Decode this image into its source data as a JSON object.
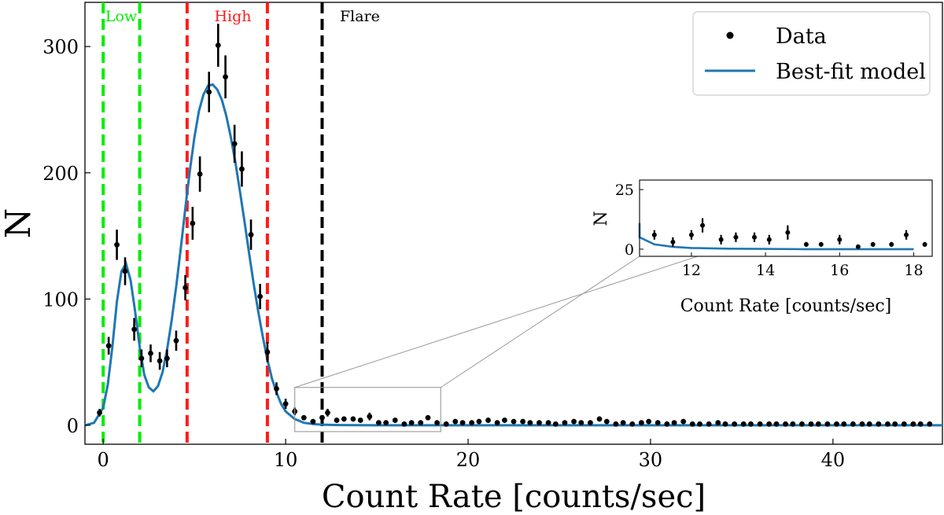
{
  "chart_data": {
    "type": "scatter",
    "xlabel": "Count Rate [counts/sec]",
    "ylabel": "N",
    "xlim": [
      -1,
      46
    ],
    "ylim": [
      -15,
      335
    ],
    "xticks": [
      0,
      10,
      20,
      30,
      40
    ],
    "yticks": [
      0,
      100,
      200,
      300
    ],
    "legend": {
      "placement": "top-right",
      "entries": [
        {
          "label": "Data",
          "marker": "point",
          "color": "#000000"
        },
        {
          "label": "Best-fit model",
          "marker": "line",
          "color": "#1f77b4"
        }
      ]
    },
    "regions": [
      {
        "label": "Low",
        "color": "#00ee00",
        "bounds": [
          0,
          2
        ]
      },
      {
        "label": "High",
        "color": "#ff1a1a",
        "bounds": [
          4.6,
          9.0
        ]
      },
      {
        "label": "Flare",
        "color": "#000000",
        "bounds": [
          12.0
        ]
      }
    ],
    "series": [
      {
        "name": "Data",
        "x": [
          -0.2,
          0.3,
          0.75,
          1.2,
          1.7,
          2.1,
          2.6,
          3.1,
          3.5,
          4.0,
          4.5,
          4.9,
          5.3,
          5.8,
          6.3,
          6.7,
          7.2,
          7.6,
          8.1,
          8.6,
          9.0,
          9.5,
          10.0,
          10.5,
          11.0,
          11.5,
          12.0,
          12.3,
          12.8,
          13.2,
          13.7,
          14.1,
          14.6,
          15.1,
          15.5,
          16.0,
          16.5,
          16.9,
          17.4,
          17.8,
          18.3,
          18.8,
          19.3,
          19.7,
          20.2,
          20.6,
          21.1,
          21.6,
          22.0,
          22.5,
          23.0,
          23.4,
          23.9,
          24.4,
          24.8,
          25.3,
          25.8,
          26.2,
          26.7,
          27.2,
          27.6,
          28.1,
          28.5,
          29.0,
          29.5,
          29.9,
          30.4,
          30.9,
          31.3,
          31.8,
          32.3,
          32.7,
          33.2,
          33.7,
          34.1,
          34.6,
          35.1,
          35.5,
          36.0,
          36.5,
          36.9,
          37.4,
          37.8,
          38.3,
          38.8,
          39.2,
          39.7,
          40.2,
          40.6,
          41.1,
          41.6,
          42.0,
          42.5,
          43.0,
          43.4,
          43.9,
          44.4,
          44.8,
          45.3
        ],
        "y": [
          10,
          63,
          143,
          122,
          76,
          53,
          57,
          51,
          53,
          67,
          109,
          160,
          199,
          264,
          301,
          276,
          223,
          203,
          151,
          102,
          58,
          29,
          17,
          11,
          6,
          3,
          6,
          10,
          4,
          5,
          5,
          4,
          7,
          2,
          2,
          4,
          1,
          2,
          2,
          6,
          2,
          1,
          3,
          2,
          2,
          3,
          4,
          2,
          4,
          3,
          3,
          2,
          2,
          2,
          1,
          2,
          3,
          2,
          2,
          5,
          3,
          1,
          2,
          1,
          2,
          3,
          2,
          1,
          2,
          3,
          1,
          1,
          1,
          2,
          1,
          1,
          1,
          1,
          1,
          1,
          1,
          1,
          1,
          1,
          1,
          1,
          1,
          1,
          1,
          1,
          1,
          1,
          1,
          1,
          1,
          1,
          1,
          1,
          1
        ],
        "yerr": [
          3,
          7,
          12,
          11,
          9,
          7,
          7,
          7,
          7,
          8,
          10,
          13,
          14,
          16,
          17,
          17,
          15,
          14,
          12,
          10,
          8,
          5,
          4,
          3,
          2,
          2,
          2,
          3,
          2,
          2,
          2,
          2,
          3,
          1,
          1,
          2,
          1,
          1,
          1,
          2,
          1,
          1,
          2,
          1,
          1,
          2,
          2,
          1,
          2,
          2,
          2,
          1,
          1,
          1,
          1,
          1,
          2,
          1,
          1,
          2,
          2,
          1,
          1,
          1,
          1,
          2,
          1,
          1,
          1,
          2,
          1,
          1,
          1,
          1,
          1,
          1,
          1,
          1,
          1,
          1,
          1,
          1,
          1,
          1,
          1,
          1,
          1,
          1,
          1,
          1,
          1,
          1,
          1,
          1,
          1,
          1,
          1,
          1,
          1
        ]
      },
      {
        "name": "Best-fit model",
        "x": [
          -1,
          -0.5,
          0,
          0.25,
          0.5,
          0.75,
          1,
          1.25,
          1.5,
          1.75,
          2,
          2.25,
          2.5,
          2.75,
          3,
          3.25,
          3.5,
          3.75,
          4,
          4.25,
          4.5,
          4.75,
          5,
          5.25,
          5.5,
          5.75,
          6,
          6.25,
          6.5,
          6.75,
          7,
          7.25,
          7.5,
          7.75,
          8,
          8.25,
          8.5,
          8.75,
          9,
          9.25,
          9.5,
          9.75,
          10,
          10.5,
          11,
          11.5,
          12,
          13,
          14,
          15,
          18,
          22,
          30,
          40,
          46
        ],
        "y": [
          0,
          2,
          14,
          32,
          62,
          98,
          122,
          128,
          115,
          90,
          62,
          40,
          30,
          27,
          31,
          42,
          60,
          83,
          110,
          140,
          172,
          202,
          228,
          249,
          262,
          269,
          270,
          266,
          258,
          245,
          228,
          208,
          185,
          161,
          136,
          112,
          90,
          70,
          52,
          37,
          26,
          17,
          11,
          5,
          2,
          1,
          0.5,
          0.2,
          0.1,
          0,
          0,
          0,
          0,
          0,
          0
        ]
      }
    ],
    "inset": {
      "xlim": [
        10.6,
        18.5
      ],
      "ylim": [
        -3,
        29
      ],
      "xticks": [
        12,
        14,
        16,
        18
      ],
      "yticks": [
        0,
        25
      ],
      "xlabel": "Count Rate [counts/sec]",
      "ylabel": "N",
      "zoom_box": {
        "x": [
          10.5,
          18.5
        ],
        "y": [
          -5,
          30
        ]
      }
    }
  }
}
